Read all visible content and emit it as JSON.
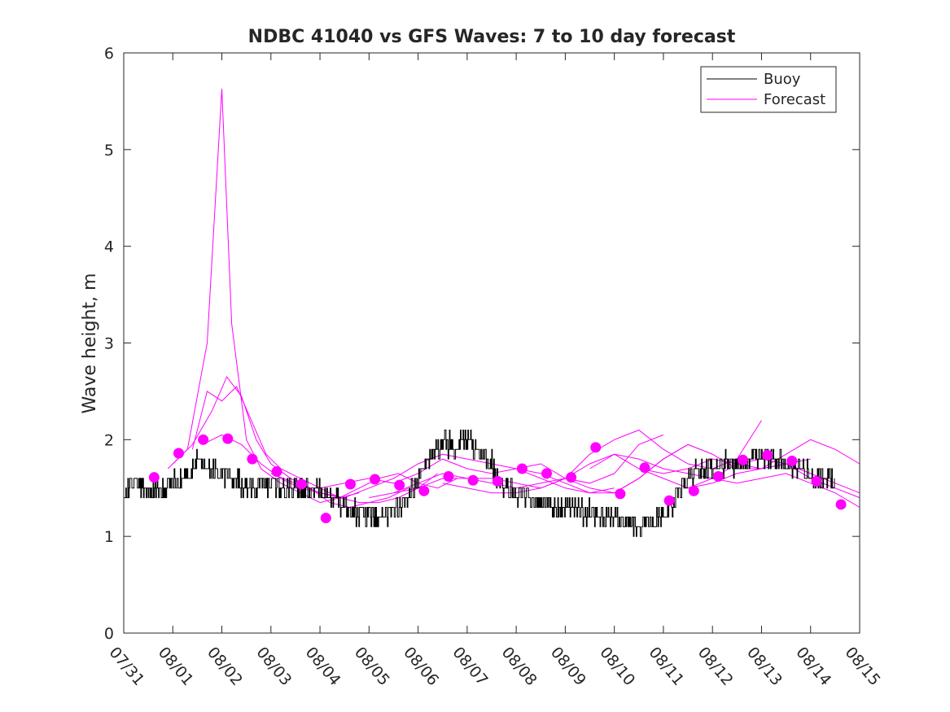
{
  "chart_data": {
    "type": "line",
    "title": "NDBC 41040 vs GFS Waves: 7 to 10 day forecast",
    "xlabel": "",
    "ylabel": "Wave height, m",
    "xlim": [
      "07/31",
      "08/15"
    ],
    "ylim": [
      0,
      6
    ],
    "x_ticks": [
      "07/31",
      "08/01",
      "08/02",
      "08/03",
      "08/04",
      "08/05",
      "08/06",
      "08/07",
      "08/08",
      "08/09",
      "08/10",
      "08/11",
      "08/12",
      "08/13",
      "08/14",
      "08/15"
    ],
    "y_ticks": [
      0,
      1,
      2,
      3,
      4,
      5,
      6
    ],
    "grid": false,
    "legend_position": "top-right",
    "colors": {
      "buoy": "#000000",
      "forecast": "#ff00ff",
      "axes": "#262626"
    },
    "series": [
      {
        "name": "Buoy",
        "style": "stepped-noisy-line",
        "x_day": [
          0.0,
          0.25,
          0.5,
          0.75,
          1.0,
          1.25,
          1.5,
          1.75,
          2.0,
          2.25,
          2.5,
          2.75,
          3.0,
          3.25,
          3.5,
          3.75,
          4.0,
          4.25,
          4.5,
          4.75,
          5.0,
          5.25,
          5.5,
          5.75,
          6.0,
          6.25,
          6.5,
          6.75,
          7.0,
          7.25,
          7.5,
          7.75,
          8.0,
          8.25,
          8.5,
          8.75,
          9.0,
          9.25,
          9.5,
          9.75,
          10.0,
          10.25,
          10.5,
          10.75,
          11.0,
          11.25,
          11.5,
          11.75,
          12.0,
          12.25,
          12.5,
          12.75,
          13.0,
          13.25,
          13.5,
          13.75,
          14.0,
          14.25,
          14.5,
          14.75,
          15.0
        ],
        "y": [
          1.5,
          1.55,
          1.5,
          1.45,
          1.55,
          1.6,
          1.75,
          1.7,
          1.65,
          1.6,
          1.5,
          1.5,
          1.55,
          1.5,
          1.5,
          1.45,
          1.45,
          1.4,
          1.3,
          1.25,
          1.2,
          1.2,
          1.25,
          1.4,
          1.6,
          1.85,
          1.95,
          1.95,
          2.0,
          1.85,
          1.75,
          1.5,
          1.45,
          1.4,
          1.35,
          1.3,
          1.3,
          1.25,
          1.25,
          1.2,
          1.2,
          1.15,
          1.1,
          1.15,
          1.2,
          1.4,
          1.6,
          1.7,
          1.7,
          1.75,
          1.75,
          1.8,
          1.8,
          1.8,
          1.75,
          1.7,
          1.65,
          1.6,
          null,
          null,
          null
        ]
      },
      {
        "name": "Forecast",
        "x_day": [
          0.9,
          1.3,
          1.7,
          2.0,
          2.2,
          2.5,
          2.8,
          3.2,
          3.6,
          4.0,
          4.4,
          4.8
        ],
        "y": [
          1.7,
          1.9,
          3.0,
          5.63,
          3.2,
          2.0,
          1.7,
          1.55,
          1.45,
          1.35,
          1.4,
          1.45
        ]
      },
      {
        "name": "",
        "x_day": [
          1.0,
          1.4,
          1.8,
          2.1,
          2.4,
          2.7,
          3.0,
          3.4,
          3.8,
          4.2,
          4.6,
          5.0,
          5.4,
          5.8
        ],
        "y": [
          1.75,
          1.95,
          2.3,
          2.65,
          2.45,
          2.0,
          1.75,
          1.6,
          1.5,
          1.35,
          1.3,
          1.35,
          1.4,
          1.5
        ]
      },
      {
        "name": "",
        "x_day": [
          1.4,
          1.7,
          2.0,
          2.3,
          2.6,
          2.9,
          3.2,
          3.6,
          4.0,
          4.4,
          4.8,
          5.2,
          5.6,
          6.0,
          6.4
        ],
        "y": [
          1.9,
          2.5,
          2.4,
          2.55,
          2.2,
          1.85,
          1.7,
          1.6,
          1.5,
          1.4,
          1.35,
          1.35,
          1.4,
          1.5,
          1.65
        ]
      },
      {
        "name": "",
        "x_day": [
          1.6,
          2.0,
          2.4,
          2.8,
          3.2,
          3.6,
          4.0,
          4.4,
          4.8,
          5.2,
          5.6,
          6.0,
          6.4,
          6.8
        ],
        "y": [
          1.95,
          2.05,
          1.95,
          1.75,
          1.6,
          1.5,
          1.45,
          1.4,
          1.5,
          1.6,
          1.65,
          1.55,
          1.5,
          1.6
        ]
      },
      {
        "name": "",
        "x_day": [
          3.0,
          3.5,
          4.0,
          4.5,
          5.0,
          5.5,
          6.0,
          6.5,
          7.0,
          7.5,
          8.0,
          8.5,
          9.0,
          9.5,
          10.0
        ],
        "y": [
          1.65,
          1.55,
          1.45,
          1.4,
          1.5,
          1.6,
          1.75,
          1.85,
          1.8,
          1.75,
          1.7,
          1.6,
          1.5,
          1.45,
          1.5
        ]
      },
      {
        "name": "",
        "x_day": [
          4.0,
          4.5,
          5.0,
          5.5,
          6.0,
          6.5,
          7.0,
          7.5,
          8.0,
          8.5,
          9.0,
          9.5,
          10.0,
          10.5,
          11.0
        ],
        "y": [
          1.5,
          1.55,
          1.6,
          1.55,
          1.65,
          1.8,
          1.7,
          1.65,
          1.7,
          1.75,
          1.6,
          1.55,
          1.65,
          1.95,
          2.05
        ]
      },
      {
        "name": "",
        "x_day": [
          5.0,
          5.5,
          6.0,
          6.5,
          7.0,
          7.5,
          8.0,
          8.5,
          9.0,
          9.5,
          10.0,
          10.5,
          11.0,
          11.5,
          12.0
        ],
        "y": [
          1.4,
          1.45,
          1.5,
          1.6,
          1.6,
          1.55,
          1.5,
          1.55,
          1.6,
          1.5,
          1.45,
          1.6,
          1.8,
          1.95,
          1.85
        ]
      },
      {
        "name": "",
        "x_day": [
          5.5,
          6.0,
          6.5,
          7.0,
          7.5,
          8.0,
          8.5,
          9.0,
          9.5,
          10.0,
          10.5,
          11.0,
          11.5,
          12.0,
          12.5,
          13.0
        ],
        "y": [
          1.45,
          1.55,
          1.65,
          1.6,
          1.6,
          1.55,
          1.5,
          1.6,
          1.85,
          2.0,
          2.1,
          1.9,
          1.75,
          1.7,
          1.8,
          2.2
        ]
      },
      {
        "name": "",
        "x_day": [
          6.5,
          7.0,
          7.5,
          8.0,
          8.5,
          9.0,
          9.5,
          10.0,
          10.5,
          11.0,
          11.5,
          12.0,
          12.5,
          13.0,
          13.5,
          14.0
        ],
        "y": [
          1.55,
          1.5,
          1.45,
          1.45,
          1.5,
          1.6,
          1.75,
          1.85,
          1.7,
          1.6,
          1.5,
          1.55,
          1.65,
          1.7,
          1.75,
          1.8
        ]
      },
      {
        "name": "",
        "x_day": [
          8.0,
          8.5,
          9.0,
          9.5,
          10.0,
          10.5,
          11.0,
          11.5,
          12.0,
          12.5,
          13.0,
          13.5,
          14.0,
          14.5,
          15.0
        ],
        "y": [
          1.7,
          1.65,
          1.55,
          1.45,
          1.45,
          1.6,
          1.8,
          1.95,
          1.85,
          1.7,
          1.7,
          1.85,
          2.0,
          1.9,
          1.75
        ]
      },
      {
        "name": "",
        "x_day": [
          9.5,
          10.0,
          10.5,
          11.0,
          11.5,
          12.0,
          12.5,
          13.0,
          13.5,
          14.0,
          14.5,
          15.0
        ],
        "y": [
          1.7,
          1.85,
          1.8,
          1.7,
          1.65,
          1.6,
          1.55,
          1.6,
          1.65,
          1.55,
          1.45,
          1.3
        ]
      },
      {
        "name": "",
        "x_day": [
          10.5,
          11.0,
          11.5,
          12.0,
          12.5,
          13.0,
          13.5,
          14.0,
          14.5,
          15.0
        ],
        "y": [
          1.7,
          1.65,
          1.7,
          1.8,
          1.75,
          1.7,
          1.75,
          1.6,
          1.5,
          1.4
        ]
      },
      {
        "name": "",
        "x_day": [
          11.5,
          12.0,
          12.5,
          13.0,
          13.5,
          14.0,
          14.5,
          15.0
        ],
        "y": [
          1.5,
          1.6,
          1.75,
          1.8,
          1.75,
          1.65,
          1.55,
          1.45
        ]
      }
    ],
    "forecast_points": {
      "x_day": [
        0.62,
        1.12,
        1.62,
        2.12,
        2.62,
        3.12,
        3.62,
        4.12,
        4.62,
        5.12,
        5.62,
        6.12,
        6.62,
        7.12,
        7.62,
        8.12,
        8.62,
        9.12,
        9.62,
        10.12,
        10.62,
        11.12,
        11.62,
        12.12,
        12.62,
        13.12,
        13.62,
        14.12,
        14.62
      ],
      "y": [
        1.61,
        1.86,
        2.0,
        2.01,
        1.8,
        1.67,
        1.54,
        1.19,
        1.54,
        1.59,
        1.53,
        1.47,
        1.62,
        1.58,
        1.57,
        1.7,
        1.65,
        1.61,
        1.92,
        1.44,
        1.71,
        1.37,
        1.47,
        1.62,
        1.79,
        1.84,
        1.78,
        1.57,
        1.33
      ]
    }
  }
}
